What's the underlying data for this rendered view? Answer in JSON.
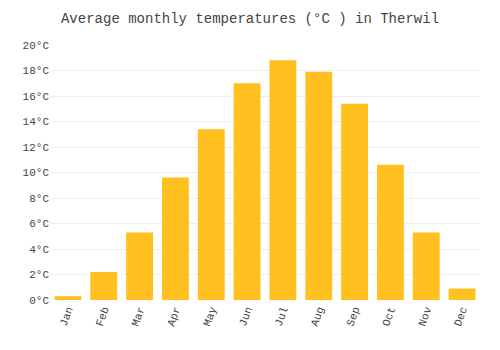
{
  "chart_data": {
    "type": "bar",
    "title": "Average monthly temperatures (°C ) in Therwil",
    "categories": [
      "Jan",
      "Feb",
      "Mar",
      "Apr",
      "May",
      "Jun",
      "Jul",
      "Aug",
      "Sep",
      "Oct",
      "Nov",
      "Dec"
    ],
    "values": [
      0.3,
      2.2,
      5.3,
      9.6,
      13.4,
      17.0,
      18.8,
      17.9,
      15.4,
      10.6,
      5.3,
      0.9
    ],
    "color": "#FFC020",
    "ylim": [
      0,
      20
    ],
    "yticks": [
      {
        "value": 0,
        "label": "0°C"
      },
      {
        "value": 2,
        "label": "2°C"
      },
      {
        "value": 4,
        "label": "4°C"
      },
      {
        "value": 6,
        "label": "6°C"
      },
      {
        "value": 8,
        "label": "8°C"
      },
      {
        "value": 10,
        "label": "10°C"
      },
      {
        "value": 12,
        "label": "12°C"
      },
      {
        "value": 14,
        "label": "14°C"
      },
      {
        "value": 16,
        "label": "16°C"
      },
      {
        "value": 18,
        "label": "18°C"
      },
      {
        "value": 20,
        "label": "20°C"
      }
    ],
    "grid": true
  }
}
